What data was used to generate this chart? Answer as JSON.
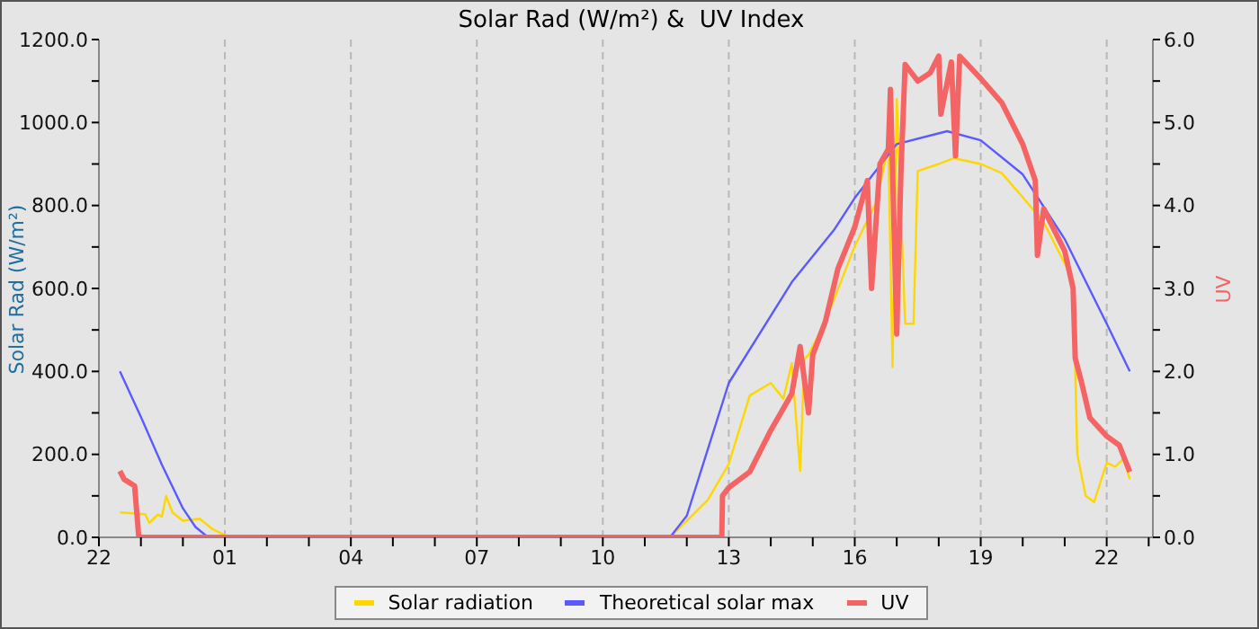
{
  "chart_data": {
    "type": "line",
    "title": "Solar Rad (W/m²) &  UV Index",
    "ylabel": "Solar Rad (W/m²)",
    "y2label": "UV",
    "xlim": [
      "--01-01T22:00",
      "--01-02T23:06"
    ],
    "xticks": [
      {
        "value": "--01-01T22:00",
        "label": "22"
      },
      {
        "value": "--01-01T23:00",
        "label": null
      },
      {
        "value": "--01-02T00:00",
        "label": null
      },
      {
        "value": "--01-02T01:00",
        "label": "01"
      },
      {
        "value": "--01-02T02:00",
        "label": null
      },
      {
        "value": "--01-02T03:00",
        "label": null
      },
      {
        "value": "--01-02T04:00",
        "label": "04"
      },
      {
        "value": "--01-02T05:00",
        "label": null
      },
      {
        "value": "--01-02T06:00",
        "label": null
      },
      {
        "value": "--01-02T07:00",
        "label": "07"
      },
      {
        "value": "--01-02T08:00",
        "label": null
      },
      {
        "value": "--01-02T09:00",
        "label": null
      },
      {
        "value": "--01-02T10:00",
        "label": "10"
      },
      {
        "value": "--01-02T11:00",
        "label": null
      },
      {
        "value": "--01-02T12:00",
        "label": null
      },
      {
        "value": "--01-02T13:00",
        "label": "13"
      },
      {
        "value": "--01-02T14:00",
        "label": null
      },
      {
        "value": "--01-02T15:00",
        "label": null
      },
      {
        "value": "--01-02T16:00",
        "label": "16"
      },
      {
        "value": "--01-02T17:00",
        "label": null
      },
      {
        "value": "--01-02T18:00",
        "label": null
      },
      {
        "value": "--01-02T19:00",
        "label": "19"
      },
      {
        "value": "--01-02T20:00",
        "label": null
      },
      {
        "value": "--01-02T21:00",
        "label": null
      },
      {
        "value": "--01-02T22:00",
        "label": "22"
      },
      {
        "value": "--01-02T23:00",
        "label": null
      }
    ],
    "ylim": [
      0,
      1200
    ],
    "yticks": [
      {
        "value": 0,
        "label": "0.0"
      },
      {
        "value": 100,
        "label": null
      },
      {
        "value": 200,
        "label": "200.0"
      },
      {
        "value": 300,
        "label": null
      },
      {
        "value": 400,
        "label": "400.0"
      },
      {
        "value": 500,
        "label": null
      },
      {
        "value": 600,
        "label": "600.0"
      },
      {
        "value": 700,
        "label": null
      },
      {
        "value": 800,
        "label": "800.0"
      },
      {
        "value": 900,
        "label": null
      },
      {
        "value": 1000,
        "label": "1000.0"
      },
      {
        "value": 1100,
        "label": null
      },
      {
        "value": 1200,
        "label": "1200.0"
      }
    ],
    "y2lim": [
      0,
      6
    ],
    "y2ticks": [
      {
        "value": 0,
        "label": "0.0"
      },
      {
        "value": 0.5,
        "label": null
      },
      {
        "value": 1,
        "label": "1.0"
      },
      {
        "value": 1.5,
        "label": null
      },
      {
        "value": 2,
        "label": "2.0"
      },
      {
        "value": 2.5,
        "label": null
      },
      {
        "value": 3,
        "label": "3.0"
      },
      {
        "value": 3.5,
        "label": null
      },
      {
        "value": 4,
        "label": "4.0"
      },
      {
        "value": 4.5,
        "label": null
      },
      {
        "value": 5,
        "label": "5.0"
      },
      {
        "value": 5.5,
        "label": null
      },
      {
        "value": 6,
        "label": "6.0"
      }
    ],
    "grid": true,
    "legend": "bottom",
    "marker": "none",
    "series": [
      {
        "name": "Solar radiation",
        "color": "#ffd700",
        "x": [
          "--01-01T22:30",
          "--01-01T23:06",
          "--01-01T23:12",
          "--01-01T23:24",
          "--01-01T23:30",
          "--01-01T23:36",
          "--01-01T23:45",
          "--01-02T00:00",
          "--01-02T00:24",
          "--01-02T00:42",
          "--01-02T01:00",
          "--01-02T01:06",
          "--01-02T11:36",
          "--01-02T12:00",
          "--01-02T12:30",
          "--01-02T13:00",
          "--01-02T13:30",
          "--01-02T14:00",
          "--01-02T14:18",
          "--01-02T14:30",
          "--01-02T14:42",
          "--01-02T14:48",
          "--01-02T14:54",
          "--01-02T15:12",
          "--01-02T15:30",
          "--01-02T16:00",
          "--01-02T16:30",
          "--01-02T16:48",
          "--01-02T16:54",
          "--01-02T17:00",
          "--01-02T17:12",
          "--01-02T17:24",
          "--01-02T17:30",
          "--01-02T18:00",
          "--01-02T18:21",
          "--01-02T19:00",
          "--01-02T19:30",
          "--01-02T20:00",
          "--01-02T20:30",
          "--01-02T21:00",
          "--01-02T21:12",
          "--01-02T21:18",
          "--01-02T21:30",
          "--01-02T21:42",
          "--01-02T22:00",
          "--01-02T22:12",
          "--01-02T22:24",
          "--01-02T22:33"
        ],
        "values": [
          60,
          56,
          35,
          55,
          50,
          100,
          60,
          40,
          45,
          20,
          5,
          0,
          0,
          40,
          90,
          177,
          342,
          372,
          334,
          420,
          160,
          430,
          440,
          500,
          572,
          702,
          805,
          940,
          411,
          1057,
          515,
          515,
          883,
          900,
          914,
          900,
          878,
          820,
          760,
          660,
          620,
          200,
          100,
          85,
          180,
          170,
          190,
          140
        ]
      },
      {
        "name": "Theoretical solar max",
        "color": "#5a5aff",
        "x": [
          "--01-01T22:30",
          "--01-01T23:00",
          "--01-01T23:30",
          "--01-02T00:00",
          "--01-02T00:18",
          "--01-02T00:36",
          "--01-02T11:36",
          "--01-02T12:00",
          "--01-02T13:00",
          "--01-02T14:30",
          "--01-02T15:30",
          "--01-02T16:00",
          "--01-02T17:00",
          "--01-02T18:12",
          "--01-02T19:00",
          "--01-02T20:00",
          "--01-02T21:00",
          "--01-02T22:00",
          "--01-02T22:33"
        ],
        "values": [
          400,
          290,
          175,
          70,
          25,
          0,
          0,
          52,
          372,
          615,
          740,
          818,
          948,
          979,
          957,
          875,
          719,
          515,
          400
        ]
      },
      {
        "name": "UV",
        "color": "#f46464",
        "axis": "y2",
        "x": [
          "--01-01T22:30",
          "--01-01T22:36",
          "--01-01T22:51",
          "--01-01T22:57",
          "--01-02T12:50",
          "--01-02T12:51",
          "--01-02T13:00",
          "--01-02T13:30",
          "--01-02T14:00",
          "--01-02T14:30",
          "--01-02T14:42",
          "--01-02T14:54",
          "--01-02T15:00",
          "--01-02T15:18",
          "--01-02T15:36",
          "--01-02T16:00",
          "--01-02T16:18",
          "--01-02T16:24",
          "--01-02T16:36",
          "--01-02T16:48",
          "--01-02T16:51",
          "--01-02T17:00",
          "--01-02T17:06",
          "--01-02T17:12",
          "--01-02T17:30",
          "--01-02T17:48",
          "--01-02T18:00",
          "--01-02T18:03",
          "--01-02T18:18",
          "--01-02T18:24",
          "--01-02T18:30",
          "--01-02T19:00",
          "--01-02T19:30",
          "--01-02T20:00",
          "--01-02T20:18",
          "--01-02T20:21",
          "--01-02T20:30",
          "--01-02T21:00",
          "--01-02T21:12",
          "--01-02T21:15",
          "--01-02T21:24",
          "--01-02T21:36",
          "--01-02T22:00",
          "--01-02T22:18",
          "--01-02T22:33"
        ],
        "values": [
          0.8,
          0.7,
          0.62,
          0,
          0,
          0.5,
          0.6,
          0.79,
          1.29,
          1.73,
          2.3,
          1.5,
          2.2,
          2.6,
          3.24,
          3.74,
          4.3,
          3.0,
          4.5,
          4.68,
          5.4,
          2.45,
          4.4,
          5.7,
          5.5,
          5.6,
          5.8,
          5.1,
          5.73,
          4.6,
          5.8,
          5.53,
          5.24,
          4.74,
          4.3,
          3.4,
          3.96,
          3.45,
          3.0,
          2.16,
          1.87,
          1.44,
          1.22,
          1.11,
          0.79
        ]
      }
    ]
  }
}
